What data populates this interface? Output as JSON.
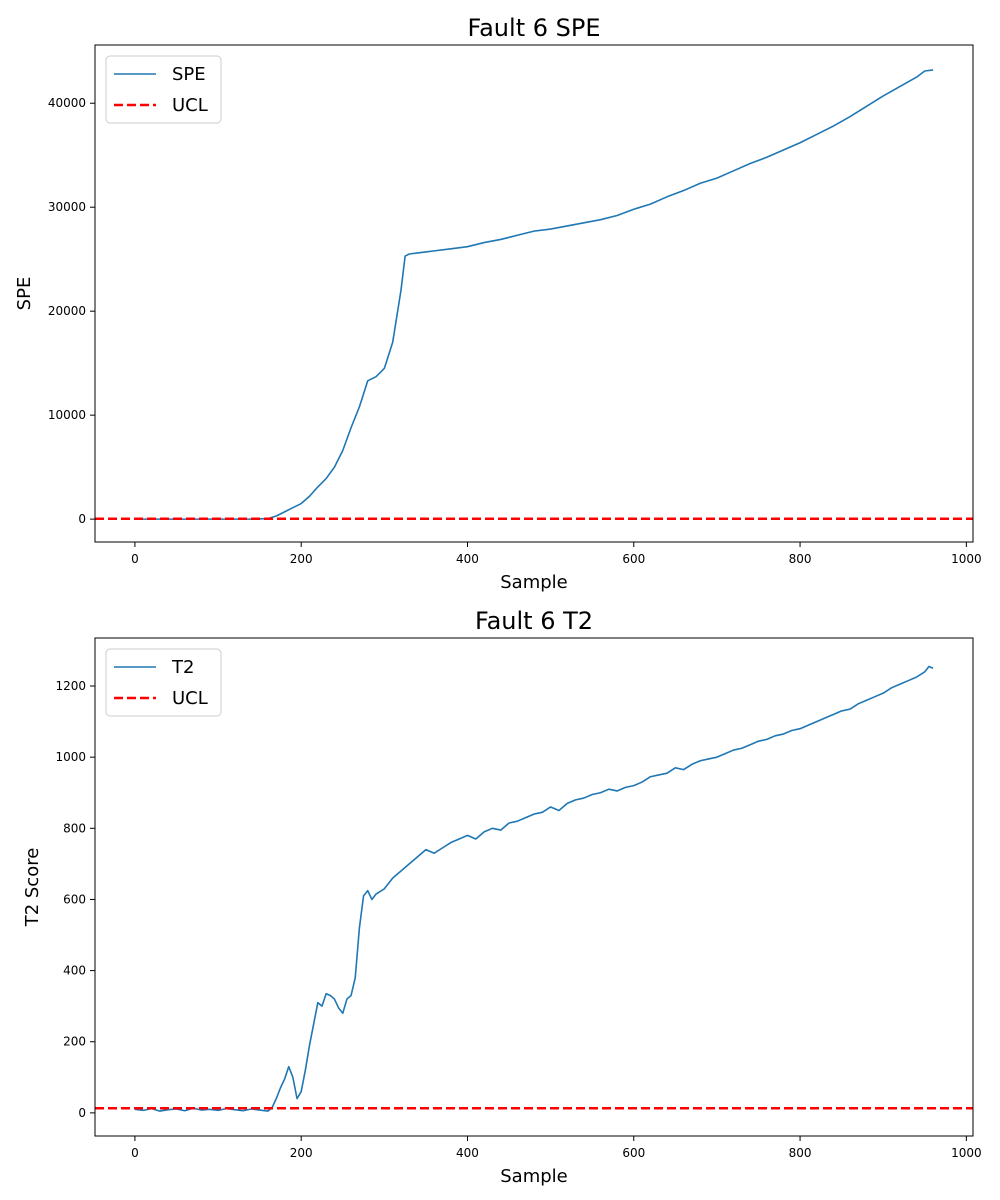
{
  "chart_data": [
    {
      "type": "line",
      "title": "Fault 6 SPE",
      "xlabel": "Sample",
      "ylabel": "SPE",
      "xlim": [
        -48,
        1008
      ],
      "ylim": [
        -2200,
        45600
      ],
      "xticks": [
        0,
        200,
        400,
        600,
        800,
        1000
      ],
      "yticks": [
        0,
        10000,
        20000,
        30000,
        40000
      ],
      "grid": false,
      "legend_position": "top-left",
      "series": [
        {
          "name": "SPE",
          "color": "#1f77b4",
          "style": "solid",
          "x": [
            0,
            20,
            40,
            60,
            80,
            100,
            120,
            140,
            160,
            170,
            180,
            190,
            200,
            210,
            220,
            230,
            240,
            250,
            260,
            270,
            280,
            290,
            300,
            310,
            320,
            325,
            330,
            340,
            350,
            360,
            380,
            400,
            420,
            440,
            460,
            480,
            500,
            520,
            540,
            560,
            580,
            600,
            620,
            640,
            660,
            680,
            700,
            720,
            740,
            760,
            780,
            800,
            820,
            840,
            860,
            880,
            900,
            920,
            940,
            950,
            960
          ],
          "y": [
            0,
            0,
            0,
            0,
            0,
            0,
            0,
            0,
            50,
            300,
            700,
            1100,
            1500,
            2200,
            3100,
            3900,
            5000,
            6600,
            8800,
            10800,
            13300,
            13700,
            14500,
            17000,
            22000,
            25300,
            25500,
            25600,
            25700,
            25800,
            26000,
            26200,
            26600,
            26900,
            27300,
            27700,
            27900,
            28200,
            28500,
            28800,
            29200,
            29800,
            30300,
            31000,
            31600,
            32300,
            32800,
            33500,
            34200,
            34800,
            35500,
            36200,
            37000,
            37800,
            38700,
            39700,
            40700,
            41600,
            42500,
            43100,
            43200
          ]
        },
        {
          "name": "UCL",
          "color": "#ff0000",
          "style": "dashed",
          "x": [
            -48,
            1008
          ],
          "y": [
            30,
            30
          ]
        }
      ]
    },
    {
      "type": "line",
      "title": "Fault 6 T2",
      "xlabel": "Sample",
      "ylabel": "T2 Score",
      "xlim": [
        -48,
        1008
      ],
      "ylim": [
        -65,
        1335
      ],
      "xticks": [
        0,
        200,
        400,
        600,
        800,
        1000
      ],
      "yticks": [
        0,
        200,
        400,
        600,
        800,
        1000,
        1200
      ],
      "grid": false,
      "legend_position": "top-left",
      "series": [
        {
          "name": "T2",
          "color": "#1f77b4",
          "style": "solid",
          "x": [
            0,
            10,
            20,
            30,
            40,
            50,
            60,
            70,
            80,
            90,
            100,
            110,
            120,
            130,
            140,
            150,
            160,
            165,
            170,
            175,
            180,
            185,
            190,
            195,
            200,
            205,
            210,
            215,
            220,
            225,
            230,
            235,
            240,
            245,
            250,
            255,
            260,
            265,
            270,
            275,
            280,
            285,
            290,
            300,
            310,
            320,
            330,
            340,
            350,
            360,
            370,
            380,
            390,
            400,
            410,
            420,
            430,
            440,
            450,
            460,
            470,
            480,
            490,
            500,
            510,
            520,
            530,
            540,
            550,
            560,
            570,
            580,
            590,
            600,
            610,
            620,
            630,
            640,
            650,
            660,
            670,
            680,
            690,
            700,
            710,
            720,
            730,
            740,
            750,
            760,
            770,
            780,
            790,
            800,
            810,
            820,
            830,
            840,
            850,
            860,
            870,
            880,
            890,
            900,
            910,
            920,
            930,
            940,
            950,
            955,
            960
          ],
          "y": [
            10,
            7,
            12,
            5,
            9,
            11,
            6,
            13,
            8,
            10,
            7,
            12,
            9,
            6,
            11,
            8,
            5,
            15,
            40,
            70,
            95,
            130,
            100,
            40,
            60,
            120,
            190,
            250,
            310,
            300,
            335,
            330,
            320,
            295,
            280,
            320,
            330,
            380,
            520,
            610,
            625,
            600,
            615,
            630,
            660,
            680,
            700,
            720,
            740,
            730,
            745,
            760,
            770,
            780,
            770,
            790,
            800,
            795,
            815,
            820,
            830,
            840,
            845,
            860,
            850,
            870,
            880,
            885,
            895,
            900,
            910,
            905,
            915,
            920,
            930,
            945,
            950,
            955,
            970,
            965,
            980,
            990,
            995,
            1000,
            1010,
            1020,
            1025,
            1035,
            1045,
            1050,
            1060,
            1065,
            1075,
            1080,
            1090,
            1100,
            1110,
            1120,
            1130,
            1135,
            1150,
            1160,
            1170,
            1180,
            1195,
            1205,
            1215,
            1225,
            1240,
            1255,
            1250
          ]
        },
        {
          "name": "UCL",
          "color": "#ff0000",
          "style": "dashed",
          "x": [
            -48,
            1008
          ],
          "y": [
            13,
            13
          ]
        }
      ]
    }
  ]
}
